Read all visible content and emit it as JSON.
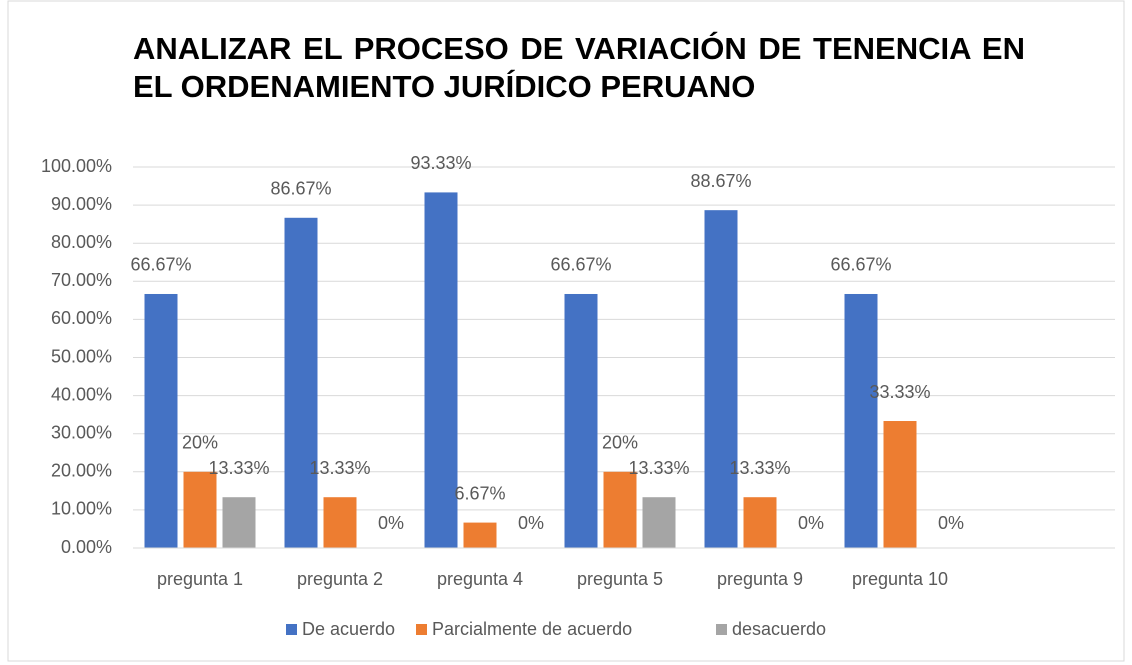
{
  "chart_data": {
    "type": "bar",
    "title": "ANALIZAR EL PROCESO DE VARIACIÓN DE TENENCIA EN EL ORDENAMIENTO JURÍDICO PERUANO",
    "categories": [
      "pregunta 1",
      "pregunta 2",
      "pregunta 4",
      "pregunta 5",
      "pregunta 9",
      "pregunta 10"
    ],
    "series": [
      {
        "name": "De acuerdo",
        "color": "#4472c4",
        "values": [
          66.67,
          86.67,
          93.33,
          66.67,
          88.67,
          66.67
        ],
        "value_labels": [
          "66.67%",
          "86.67%",
          "93.33%",
          "66.67%",
          "88.67%",
          "66.67%"
        ]
      },
      {
        "name": "Parcialmente de acuerdo",
        "color": "#ed7d31",
        "values": [
          20,
          13.33,
          6.67,
          20,
          13.33,
          33.33
        ],
        "value_labels": [
          "20%",
          "13.33%",
          "6.67%",
          "20%",
          "13.33%",
          "33.33%"
        ]
      },
      {
        "name": "desacuerdo",
        "color": "#a5a5a5",
        "values": [
          13.33,
          0,
          0,
          13.33,
          0,
          0
        ],
        "value_labels": [
          "13.33%",
          "0%",
          "0%",
          "13.33%",
          "0%",
          "0%"
        ]
      }
    ],
    "ylim": [
      0,
      100
    ],
    "yticks": [
      {
        "value": 0,
        "label": "0.00%"
      },
      {
        "value": 10,
        "label": "10.00%"
      },
      {
        "value": 20,
        "label": "20.00%"
      },
      {
        "value": 30,
        "label": "30.00%"
      },
      {
        "value": 40,
        "label": "40.00%"
      },
      {
        "value": 50,
        "label": "50.00%"
      },
      {
        "value": 60,
        "label": "60.00%"
      },
      {
        "value": 70,
        "label": "70.00%"
      },
      {
        "value": 80,
        "label": "80.00%"
      },
      {
        "value": 90,
        "label": "90.00%"
      },
      {
        "value": 100,
        "label": "100.00%"
      }
    ],
    "grid": true,
    "legend": "bottom"
  }
}
